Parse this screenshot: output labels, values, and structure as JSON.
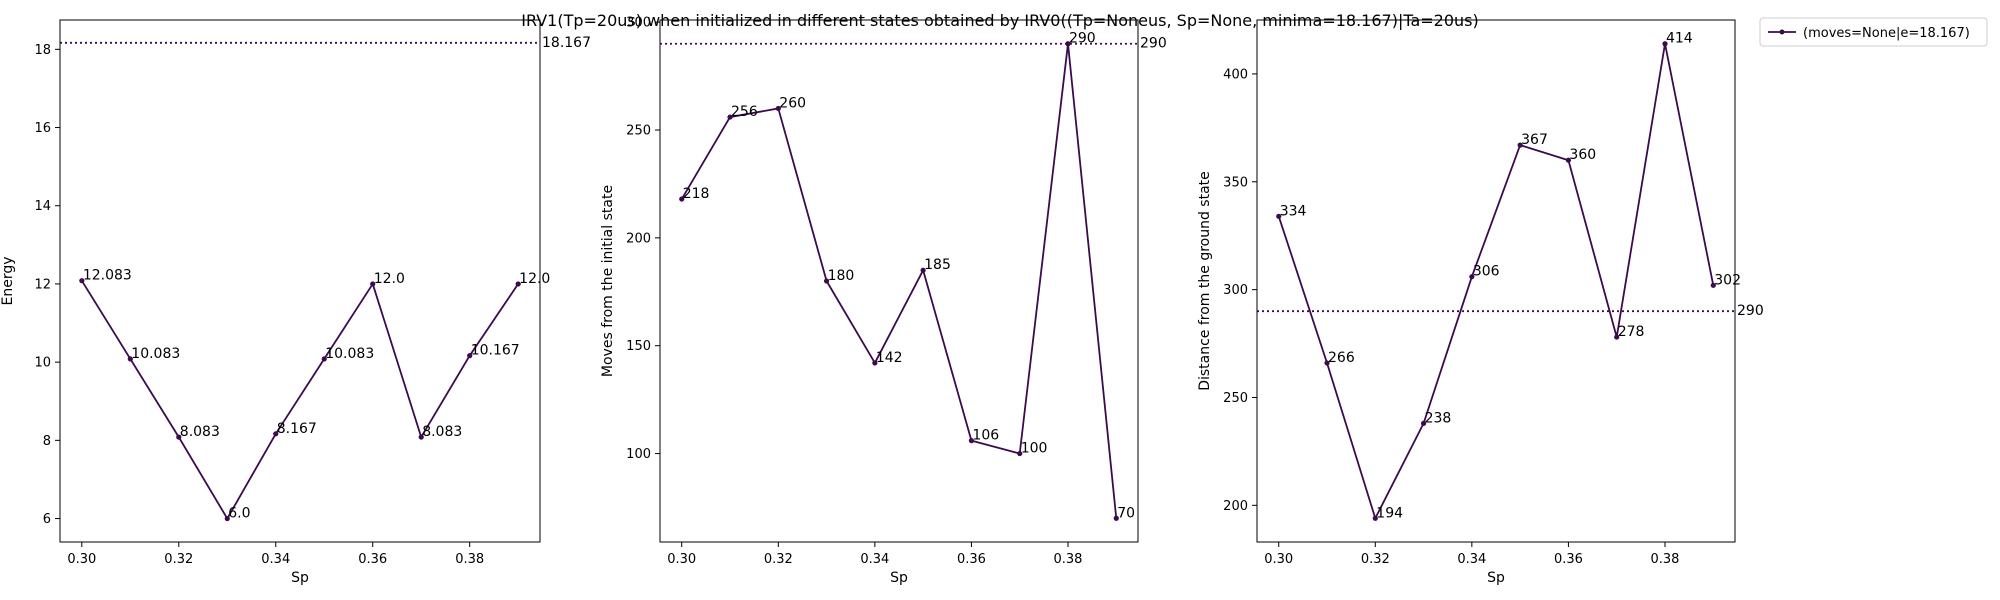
{
  "title": "IRV1(Tp=20us) when initialized in different states obtained by IRV0((Tp=Noneus, Sp=None, minima=18.167)|Ta=20us)",
  "legend": {
    "label": "(moves=None|e=18.167)",
    "placement": "outside top-right"
  },
  "colors": {
    "series": "#3b0a4f",
    "reference": "#3b0a4f"
  },
  "chart_data": [
    {
      "type": "line",
      "xlabel": "Sp",
      "ylabel": "Energy",
      "x": [
        0.3,
        0.31,
        0.32,
        0.33,
        0.34,
        0.35,
        0.36,
        0.37,
        0.38,
        0.39
      ],
      "y": [
        12.083,
        10.083,
        8.083,
        6.0,
        8.167,
        10.083,
        12.0,
        8.083,
        10.167,
        12.0
      ],
      "point_labels": [
        "12.083",
        "10.083",
        "8.083",
        "6.0",
        "8.167",
        "10.083",
        "12.0",
        "8.083",
        "10.167",
        "12.0"
      ],
      "reference_line": {
        "y": 18.167,
        "label": "18.167",
        "style": "dotted"
      },
      "xlim": [
        0.2955,
        0.3945
      ],
      "ylim": [
        5.4,
        18.75
      ],
      "xticks": [
        0.3,
        0.32,
        0.34,
        0.36,
        0.38
      ],
      "xtick_labels": [
        "0.30",
        "0.32",
        "0.34",
        "0.36",
        "0.38"
      ],
      "yticks": [
        6,
        8,
        10,
        12,
        14,
        16,
        18
      ],
      "ytick_labels": [
        "6",
        "8",
        "10",
        "12",
        "14",
        "16",
        "18"
      ],
      "grid": false
    },
    {
      "type": "line",
      "xlabel": "Sp",
      "ylabel": "Moves from the initial state",
      "x": [
        0.3,
        0.31,
        0.32,
        0.33,
        0.34,
        0.35,
        0.36,
        0.37,
        0.38,
        0.39
      ],
      "y": [
        218,
        256,
        260,
        180,
        142,
        185,
        106,
        100,
        290,
        70
      ],
      "point_labels": [
        "218",
        "256",
        "260",
        "180",
        "142",
        "185",
        "106",
        "100",
        "290",
        "70"
      ],
      "reference_line": {
        "y": 290,
        "label": "290",
        "style": "dotted"
      },
      "xlim": [
        0.2955,
        0.3945
      ],
      "ylim": [
        59,
        301
      ],
      "xticks": [
        0.3,
        0.32,
        0.34,
        0.36,
        0.38
      ],
      "xtick_labels": [
        "0.30",
        "0.32",
        "0.34",
        "0.36",
        "0.38"
      ],
      "yticks": [
        100,
        150,
        200,
        250,
        300
      ],
      "ytick_labels": [
        "100",
        "150",
        "200",
        "250",
        "300"
      ],
      "grid": false
    },
    {
      "type": "line",
      "xlabel": "Sp",
      "ylabel": "Distance from the ground state",
      "x": [
        0.3,
        0.31,
        0.32,
        0.33,
        0.34,
        0.35,
        0.36,
        0.37,
        0.38,
        0.39
      ],
      "y": [
        334,
        266,
        194,
        238,
        306,
        367,
        360,
        278,
        414,
        302
      ],
      "point_labels": [
        "334",
        "266",
        "194",
        "238",
        "306",
        "367",
        "360",
        "278",
        "414",
        "302"
      ],
      "reference_line": {
        "y": 290,
        "label": "290",
        "style": "dotted"
      },
      "xlim": [
        0.2955,
        0.3945
      ],
      "ylim": [
        183,
        425
      ],
      "xticks": [
        0.3,
        0.32,
        0.34,
        0.36,
        0.38
      ],
      "xtick_labels": [
        "0.30",
        "0.32",
        "0.34",
        "0.36",
        "0.38"
      ],
      "yticks": [
        200,
        250,
        300,
        350,
        400
      ],
      "ytick_labels": [
        "200",
        "250",
        "300",
        "350",
        "400"
      ],
      "grid": false
    }
  ]
}
